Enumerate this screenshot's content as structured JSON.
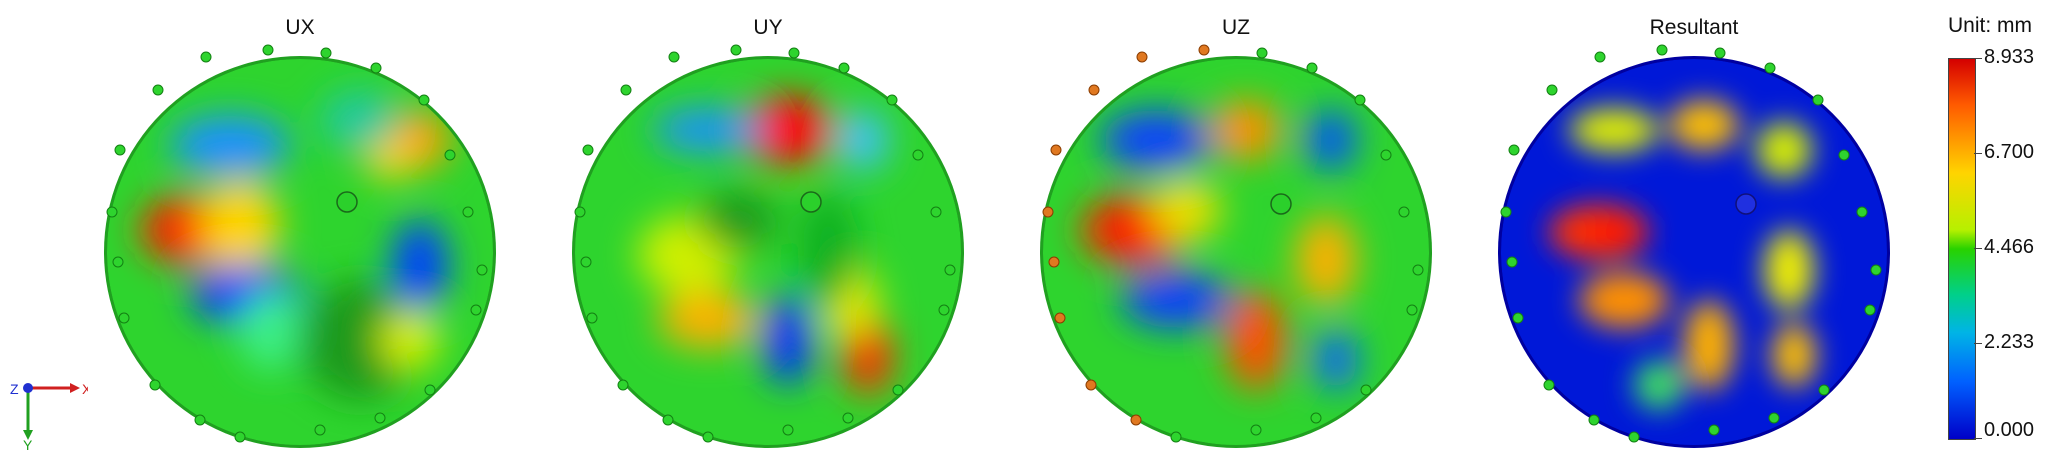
{
  "panels": [
    {
      "id": "ux",
      "title": "UX"
    },
    {
      "id": "uy",
      "title": "UY"
    },
    {
      "id": "uz",
      "title": "UZ"
    },
    {
      "id": "resultant",
      "title": "Resultant"
    }
  ],
  "colorbar": {
    "unit_label": "Unit: mm",
    "ticks": [
      "8.933",
      "6.700",
      "4.466",
      "2.233",
      "0.000"
    ],
    "colors": [
      "#d40000",
      "#ffd400",
      "#28d200",
      "#00b4e6",
      "#0000c8"
    ]
  },
  "axis_triad": {
    "x": "X",
    "y": "Y",
    "z": "Z"
  }
}
